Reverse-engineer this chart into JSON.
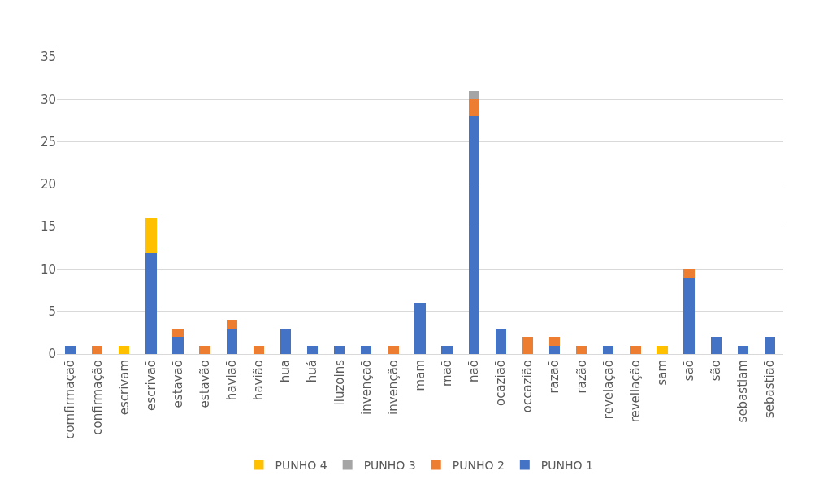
{
  "chart_data": {
    "type": "bar",
    "stacked": true,
    "categories": [
      "comfirmaçaõ",
      "confirmação",
      "escrivam",
      "escrivaõ",
      "estavaõ",
      "estavão",
      "haviaõ",
      "havião",
      "hua",
      "huá",
      "iluzoins",
      "invençaõ",
      "invenção",
      "mam",
      "maõ",
      "naõ",
      "ocaziaõ",
      "occazião",
      "razaõ",
      "razão",
      "revelaçaõ",
      "revellação",
      "sam",
      "saõ",
      "são",
      "sebastiam",
      "sebastiaõ"
    ],
    "series": [
      {
        "name": "PUNHO 1",
        "color": "#4472c4",
        "values": [
          1,
          0,
          0,
          12,
          2,
          0,
          3,
          0,
          3,
          1,
          1,
          1,
          0,
          6,
          1,
          28,
          3,
          0,
          1,
          0,
          1,
          0,
          0,
          9,
          2,
          1,
          2
        ]
      },
      {
        "name": "PUNHO 2",
        "color": "#ed7d31",
        "values": [
          0,
          1,
          0,
          0,
          1,
          1,
          1,
          1,
          0,
          0,
          0,
          0,
          1,
          0,
          0,
          2,
          0,
          2,
          1,
          1,
          0,
          1,
          0,
          1,
          0,
          0,
          0
        ]
      },
      {
        "name": "PUNHO 3",
        "color": "#a5a5a5",
        "values": [
          0,
          0,
          0,
          0,
          0,
          0,
          0,
          0,
          0,
          0,
          0,
          0,
          0,
          0,
          0,
          1,
          0,
          0,
          0,
          0,
          0,
          0,
          0,
          0,
          0,
          0,
          0
        ]
      },
      {
        "name": "PUNHO 4",
        "color": "#ffc000",
        "values": [
          0,
          0,
          1,
          4,
          0,
          0,
          0,
          0,
          0,
          0,
          0,
          0,
          0,
          0,
          0,
          0,
          0,
          0,
          0,
          0,
          0,
          0,
          1,
          0,
          0,
          0,
          0
        ]
      }
    ],
    "ylim": [
      0,
      35
    ],
    "yticks": [
      0,
      5,
      10,
      15,
      20,
      25,
      30,
      35
    ],
    "grid": "y",
    "legend": "bottom"
  }
}
